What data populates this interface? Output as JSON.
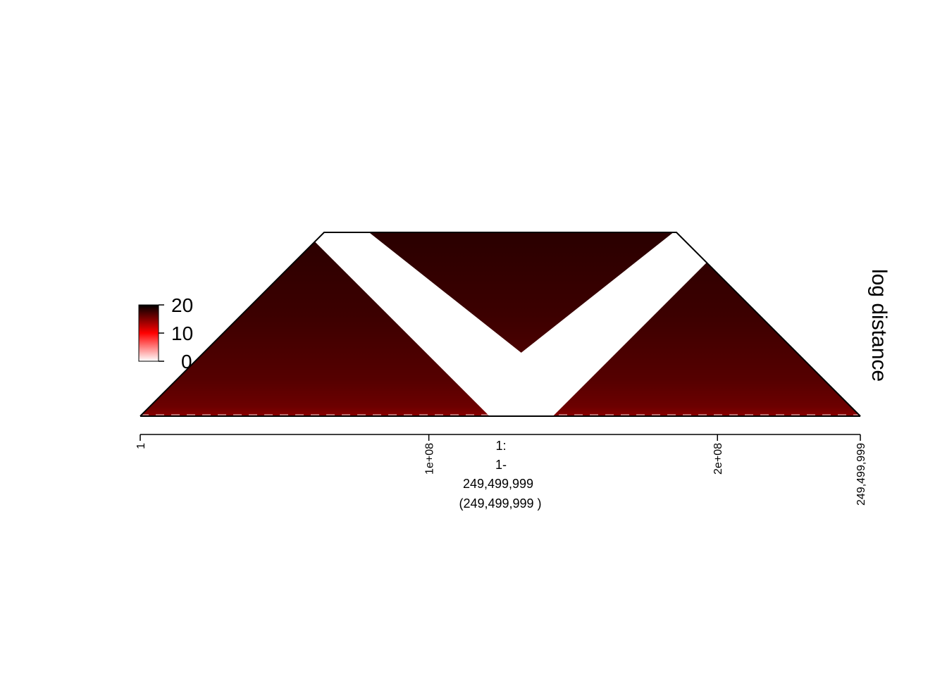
{
  "chart_data": {
    "type": "heatmap",
    "subtype": "triangular-interaction-map",
    "side_label": "log distance",
    "x_axis": {
      "range": [
        1,
        249499999
      ],
      "ticks": [
        {
          "value": 1,
          "label": "1"
        },
        {
          "value": 100000000,
          "label": "1e+08"
        },
        {
          "value": 200000000,
          "label": "2e+08"
        },
        {
          "value": 249499999,
          "label": "249,499,999"
        }
      ]
    },
    "region_label": [
      "1:",
      "1-",
      "249,499,999",
      "(249,499,999 )"
    ],
    "legend": {
      "title": "",
      "range": [
        0,
        20
      ],
      "ticks": [
        {
          "value": 20,
          "label": "20"
        },
        {
          "value": 10,
          "label": "10"
        },
        {
          "value": 0,
          "label": "0"
        }
      ],
      "colors": [
        "#ffffff",
        "#ff0000",
        "#000000"
      ]
    },
    "missing_band": {
      "start": 121000000,
      "end": 143000000
    },
    "value_range_shown": {
      "near_diagonal": 12,
      "far": 20
    }
  }
}
